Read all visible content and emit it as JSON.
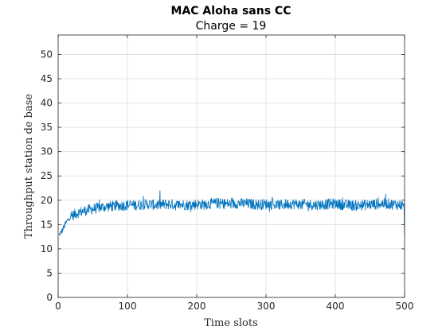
{
  "chart_data": {
    "type": "line",
    "title": "MAC Aloha sans CC",
    "subtitle": "Charge = 19",
    "xlabel": "Time slots",
    "ylabel": "Throughput station de base",
    "xlim": [
      0,
      500
    ],
    "ylim": [
      0,
      54
    ],
    "xticks": [
      "0",
      "100",
      "200",
      "300",
      "400",
      "500"
    ],
    "yticks": [
      "0",
      "5",
      "10",
      "15",
      "20",
      "25",
      "30",
      "35",
      "40",
      "45",
      "50"
    ],
    "grid": true,
    "line_color": "#0072bd",
    "series": [
      {
        "x": [
          1,
          5,
          10,
          15,
          20,
          25,
          30,
          40,
          50,
          60,
          70,
          80,
          90,
          100,
          110,
          120,
          130,
          140,
          150,
          160,
          170,
          180,
          190,
          200,
          210,
          220,
          230,
          240,
          250,
          260,
          270,
          280,
          290,
          300,
          310,
          320,
          330,
          340,
          350,
          360,
          370,
          380,
          390,
          400,
          410,
          420,
          430,
          440,
          450,
          460,
          470,
          480,
          490,
          495,
          499,
          500
        ],
        "y": [
          12.8,
          13.5,
          15.0,
          16.2,
          16.8,
          17.2,
          17.5,
          17.9,
          18.2,
          18.5,
          18.7,
          18.8,
          18.9,
          19.0,
          19.0,
          19.1,
          19.2,
          19.0,
          19.1,
          19.2,
          19.0,
          19.1,
          19.0,
          19.2,
          19.1,
          19.3,
          19.4,
          19.3,
          19.2,
          19.4,
          19.3,
          19.2,
          19.1,
          19.2,
          19.1,
          19.0,
          19.2,
          19.3,
          19.1,
          19.2,
          19.0,
          19.1,
          19.2,
          19.3,
          19.1,
          19.0,
          18.9,
          19.0,
          19.1,
          19.2,
          19.3,
          19.2,
          19.1,
          19.0,
          18.8,
          12.8
        ]
      }
    ]
  }
}
